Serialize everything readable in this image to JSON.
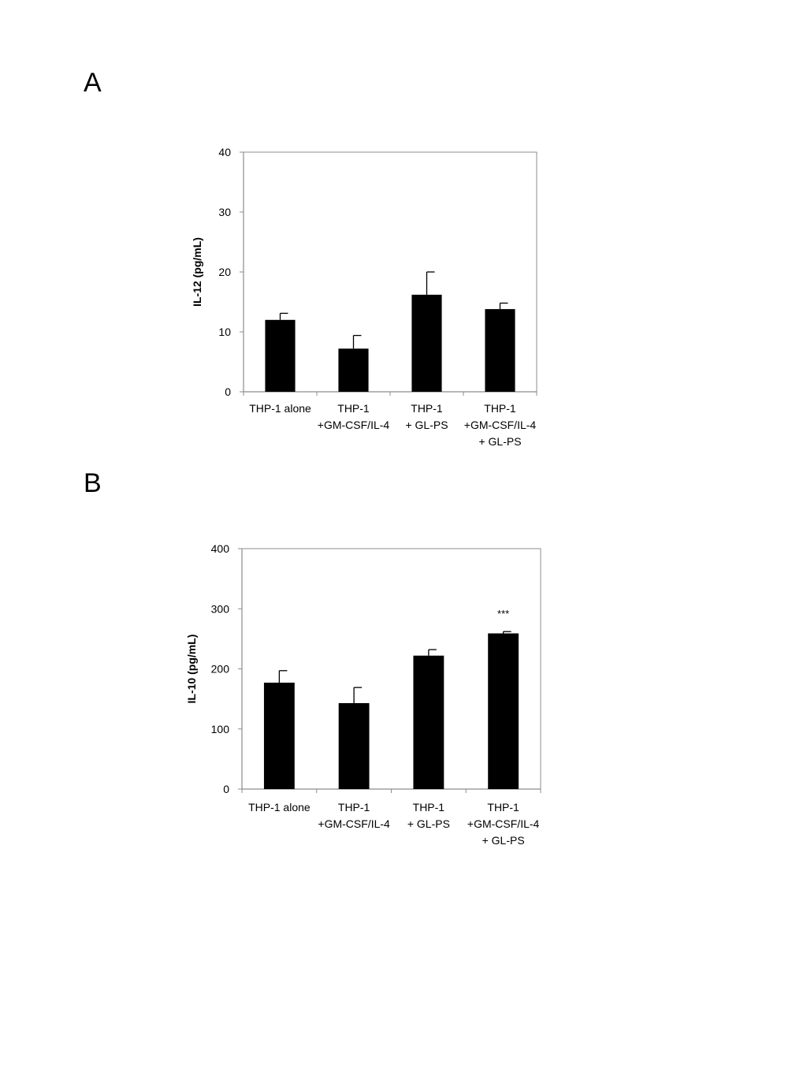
{
  "panels": [
    {
      "label": "A"
    },
    {
      "label": "B"
    }
  ],
  "chart_data": [
    {
      "type": "bar",
      "title": "",
      "xlabel": "",
      "ylabel": "IL-12 (pg/mL)",
      "ylim": [
        0,
        40
      ],
      "yticks": [
        0,
        10,
        20,
        30,
        40
      ],
      "grid": false,
      "bar_color": "#000000",
      "categories": [
        [
          "THP-1 alone"
        ],
        [
          "THP-1",
          "+GM-CSF/IL-4"
        ],
        [
          "THP-1",
          "+ GL-PS"
        ],
        [
          "THP-1",
          "+GM-CSF/IL-4",
          "+ GL-PS"
        ]
      ],
      "values": [
        12,
        7.2,
        16.2,
        13.8
      ],
      "errors": [
        1.1,
        2.2,
        3.8,
        1.0
      ],
      "annotations": [
        "",
        "",
        "",
        ""
      ]
    },
    {
      "type": "bar",
      "title": "",
      "xlabel": "",
      "ylabel": "IL-10 (pg/mL)",
      "ylim": [
        0,
        400
      ],
      "yticks": [
        0,
        100,
        200,
        300,
        400
      ],
      "grid": false,
      "bar_color": "#000000",
      "categories": [
        [
          "THP-1 alone"
        ],
        [
          "THP-1",
          "+GM-CSF/IL-4"
        ],
        [
          "THP-1",
          "+ GL-PS"
        ],
        [
          "THP-1",
          "+GM-CSF/IL-4",
          "+ GL-PS"
        ]
      ],
      "values": [
        177,
        143,
        222,
        259
      ],
      "errors": [
        20,
        26,
        10,
        3
      ],
      "annotations": [
        "",
        "",
        "",
        "***"
      ]
    }
  ]
}
